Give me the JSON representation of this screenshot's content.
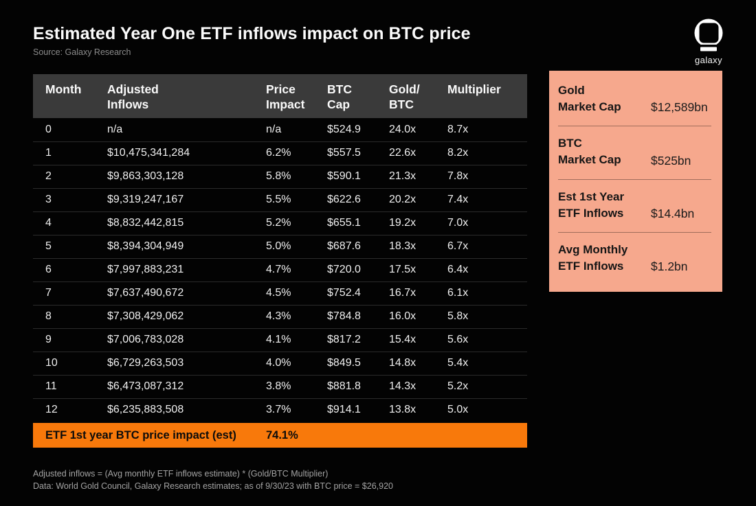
{
  "header": {
    "title": "Estimated Year One ETF inflows impact on BTC price",
    "source": "Source: Galaxy Research",
    "brand_name": "galaxy"
  },
  "colors": {
    "background": "#030303",
    "accent_orange": "#F8790B",
    "panel_salmon": "#F6A88D",
    "table_header_gray": "#3A3A3A",
    "divider_gray": "#2B2B2B"
  },
  "chart_data": {
    "type": "table",
    "title": "Estimated Year One ETF inflows impact on BTC price",
    "columns": [
      "Month",
      "Adjusted\nInflows",
      "Price\nImpact",
      "BTC\nCap",
      "Gold/\nBTC",
      "Multiplier"
    ],
    "column_keys": [
      "month",
      "adjusted_inflows",
      "price_impact",
      "btc_cap",
      "gold_btc",
      "multiplier"
    ],
    "rows": [
      [
        "0",
        "n/a",
        "n/a",
        "$524.9",
        "24.0x",
        "8.7x"
      ],
      [
        "1",
        "$10,475,341,284",
        "6.2%",
        "$557.5",
        "22.6x",
        "8.2x"
      ],
      [
        "2",
        "$9,863,303,128",
        "5.8%",
        "$590.1",
        "21.3x",
        "7.8x"
      ],
      [
        "3",
        "$9,319,247,167",
        "5.5%",
        "$622.6",
        "20.2x",
        "7.4x"
      ],
      [
        "4",
        "$8,832,442,815",
        "5.2%",
        "$655.1",
        "19.2x",
        "7.0x"
      ],
      [
        "5",
        "$8,394,304,949",
        "5.0%",
        "$687.6",
        "18.3x",
        "6.7x"
      ],
      [
        "6",
        "$7,997,883,231",
        "4.7%",
        "$720.0",
        "17.5x",
        "6.4x"
      ],
      [
        "7",
        "$7,637,490,672",
        "4.5%",
        "$752.4",
        "16.7x",
        "6.1x"
      ],
      [
        "8",
        "$7,308,429,062",
        "4.3%",
        "$784.8",
        "16.0x",
        "5.8x"
      ],
      [
        "9",
        "$7,006,783,028",
        "4.1%",
        "$817.2",
        "15.4x",
        "5.6x"
      ],
      [
        "10",
        "$6,729,263,503",
        "4.0%",
        "$849.5",
        "14.8x",
        "5.4x"
      ],
      [
        "11",
        "$6,473,087,312",
        "3.8%",
        "$881.8",
        "14.3x",
        "5.2x"
      ],
      [
        "12",
        "$6,235,883,508",
        "3.7%",
        "$914.1",
        "13.8x",
        "5.0x"
      ]
    ],
    "summary_row": {
      "label": "ETF 1st year BTC price impact (est)",
      "value": "74.1%"
    },
    "side_stats": [
      {
        "label": "Gold\nMarket Cap",
        "value": "$12,589bn"
      },
      {
        "label": "BTC\nMarket Cap",
        "value": "$525bn"
      },
      {
        "label": "Est 1st Year\nETF Inflows",
        "value": "$14.4bn"
      },
      {
        "label": "Avg Monthly\nETF Inflows",
        "value": "$1.2bn"
      }
    ],
    "footnotes": [
      "Adjusted inflows = (Avg monthly ETF inflows estimate) * (Gold/BTC Multiplier)",
      "Data: World Gold Council, Galaxy Research estimates; as of 9/30/23 with BTC price = $26,920"
    ]
  }
}
